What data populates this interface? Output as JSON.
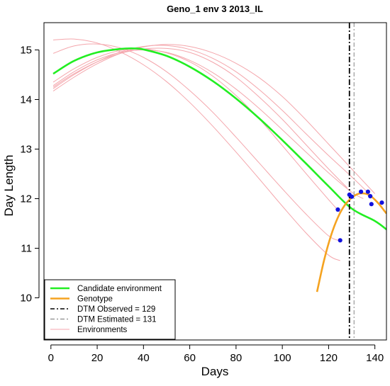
{
  "chart_data": {
    "type": "line",
    "title": "Geno_1 env 3 2013_IL",
    "xlabel": "Days",
    "ylabel": "Day Length",
    "xlim": [
      -3,
      145
    ],
    "ylim": [
      9.15,
      15.55
    ],
    "x_ticks": [
      0,
      20,
      40,
      60,
      80,
      100,
      120,
      140
    ],
    "y_ticks": [
      10,
      11,
      12,
      13,
      14,
      15
    ],
    "grid": false,
    "legend_position": "bottom-left",
    "legend": [
      {
        "label": "Candidate environment",
        "color": "#22ee22",
        "style": "solid",
        "weight": "thick"
      },
      {
        "label": "Genotype",
        "color": "#f5a320",
        "style": "solid",
        "weight": "thick"
      },
      {
        "label": "DTM Observed = 129",
        "color": "#000000",
        "style": "dashdot",
        "weight": "normal"
      },
      {
        "label": "DTM Estimated = 131",
        "color": "#999999",
        "style": "dashdot",
        "weight": "normal"
      },
      {
        "label": "Environments",
        "color": "#f4a6ac",
        "style": "solid",
        "weight": "thin"
      }
    ],
    "series": [
      {
        "name": "Candidate environment",
        "color": "#22ee22",
        "x": [
          1,
          10,
          20,
          30,
          36,
          40,
          50,
          60,
          70,
          80,
          90,
          100,
          110,
          120,
          130,
          140,
          145
        ],
        "y": [
          14.52,
          14.78,
          14.95,
          15.02,
          15.03,
          15.01,
          14.88,
          14.66,
          14.37,
          14.02,
          13.62,
          13.18,
          12.72,
          12.25,
          11.8,
          11.55,
          11.38
        ]
      },
      {
        "name": "Genotype",
        "color": "#f5a320",
        "x": [
          115,
          118,
          121,
          124,
          127,
          130,
          133,
          136,
          138,
          140,
          142,
          144,
          145
        ],
        "y": [
          10.12,
          10.75,
          11.25,
          11.62,
          11.87,
          12.02,
          12.1,
          12.1,
          12.06,
          11.98,
          11.88,
          11.76,
          11.7
        ]
      }
    ],
    "environments": [
      {
        "x": [
          1,
          10,
          20,
          30,
          40,
          50,
          60,
          70,
          80,
          90,
          100,
          110,
          120,
          125
        ],
        "y": [
          15.2,
          15.22,
          15.14,
          14.96,
          14.7,
          14.36,
          13.94,
          13.46,
          12.94,
          12.4,
          11.85,
          11.32,
          10.86,
          10.75
        ]
      },
      {
        "x": [
          1,
          10,
          20,
          30,
          40,
          50,
          60,
          70,
          80,
          90,
          100,
          110,
          120,
          125
        ],
        "y": [
          14.93,
          15.08,
          15.12,
          15.04,
          14.85,
          14.56,
          14.18,
          13.74,
          13.24,
          12.72,
          12.2,
          11.7,
          11.25,
          11.15
        ]
      },
      {
        "x": [
          1,
          10,
          20,
          30,
          40,
          50,
          60,
          70,
          80,
          90,
          100,
          110,
          120,
          130,
          135
        ],
        "y": [
          14.28,
          14.56,
          14.8,
          14.95,
          15.0,
          14.95,
          14.79,
          14.54,
          14.21,
          13.82,
          13.39,
          12.95,
          12.52,
          12.13,
          12.0
        ]
      },
      {
        "x": [
          1,
          10,
          20,
          30,
          40,
          50,
          60,
          70,
          80,
          90,
          100,
          110,
          120,
          130,
          138
        ],
        "y": [
          14.22,
          14.5,
          14.76,
          14.96,
          15.07,
          15.09,
          15.01,
          14.83,
          14.56,
          14.2,
          13.78,
          13.32,
          12.87,
          12.44,
          12.08
        ]
      },
      {
        "x": [
          1,
          10,
          20,
          30,
          40,
          50,
          60,
          70,
          80,
          90,
          100,
          110,
          120,
          130,
          140
        ],
        "y": [
          14.17,
          14.45,
          14.72,
          14.93,
          15.06,
          15.11,
          15.07,
          14.94,
          14.73,
          14.44,
          14.06,
          13.6,
          13.1,
          12.6,
          12.1
        ]
      },
      {
        "x": [
          1,
          10,
          20,
          30,
          40,
          50,
          60,
          70,
          80,
          90,
          100,
          110,
          120,
          125
        ],
        "y": [
          14.35,
          14.62,
          14.85,
          14.99,
          15.02,
          14.94,
          14.76,
          14.47,
          14.08,
          13.61,
          13.07,
          12.52,
          11.98,
          11.72
        ]
      },
      {
        "x": [
          1,
          10,
          20,
          30,
          40,
          50,
          60,
          70,
          80,
          90,
          100,
          110,
          120,
          128
        ],
        "y": [
          14.25,
          14.52,
          14.76,
          14.93,
          15.02,
          15.03,
          14.95,
          14.75,
          14.45,
          14.05,
          13.6,
          13.1,
          12.6,
          12.22
        ]
      }
    ],
    "points": {
      "color": "#1111dd",
      "x": [
        124,
        125,
        129,
        130,
        134,
        137,
        138,
        138.5,
        143
      ],
      "y": [
        11.78,
        11.16,
        12.08,
        12.04,
        12.14,
        12.14,
        12.05,
        11.89,
        11.92
      ]
    },
    "vlines": [
      {
        "name": "DTM Observed = 129",
        "x": 129,
        "color": "#000000"
      },
      {
        "name": "DTM Estimated = 131",
        "x": 131,
        "color": "#999999"
      }
    ]
  }
}
